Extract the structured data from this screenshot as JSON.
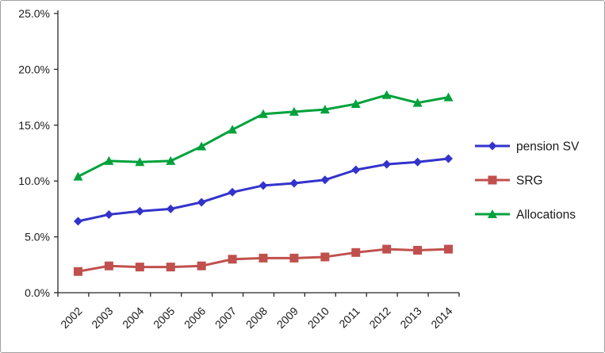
{
  "chart_data": {
    "type": "line",
    "title": "",
    "xlabel": "",
    "ylabel": "",
    "categories": [
      "2002",
      "2003",
      "2004",
      "2005",
      "2006",
      "2007",
      "2008",
      "2009",
      "2010",
      "2011",
      "2012",
      "2013",
      "2014"
    ],
    "series": [
      {
        "name": "pension SV",
        "marker": "diamond",
        "color": "#3333CC",
        "values": [
          6.4,
          7.0,
          7.3,
          7.5,
          8.1,
          9.0,
          9.6,
          9.8,
          10.1,
          11.0,
          11.5,
          11.7,
          12.0
        ]
      },
      {
        "name": "SRG",
        "marker": "square",
        "color": "#C0504D",
        "values": [
          1.9,
          2.4,
          2.3,
          2.3,
          2.4,
          3.0,
          3.1,
          3.1,
          3.2,
          3.6,
          3.9,
          3.8,
          3.9
        ]
      },
      {
        "name": "Allocations",
        "marker": "triangle",
        "color": "#00A13C",
        "values": [
          10.4,
          11.8,
          11.7,
          11.8,
          13.1,
          14.6,
          16.0,
          16.2,
          16.4,
          16.9,
          17.7,
          17.0,
          17.5
        ]
      }
    ],
    "y_axis": {
      "min": 0,
      "max": 25,
      "step": 5,
      "tick_labels": [
        "0.0%",
        "5.0%",
        "10.0%",
        "15.0%",
        "20.0%",
        "25.0%"
      ],
      "format": "percent"
    },
    "x_axis": {
      "label_rotation": -45
    },
    "legend": {
      "position": "right",
      "entries": [
        "pension SV",
        "SRG",
        "Allocations"
      ]
    },
    "grid": false,
    "colors": {
      "axis": "#262626",
      "text": "#1a1a1a",
      "frame_border": "#a0a0a0",
      "background": "#ffffff"
    }
  }
}
